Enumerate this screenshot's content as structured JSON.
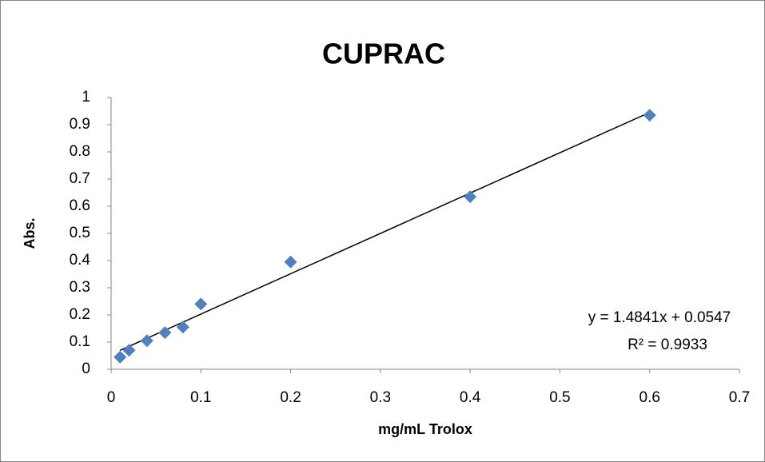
{
  "chart_data": {
    "type": "scatter",
    "title": "CUPRAC",
    "x_label": "mg/mL Trolox",
    "y_label": "Abs.",
    "x": [
      0.01,
      0.02,
      0.04,
      0.06,
      0.08,
      0.1,
      0.2,
      0.4,
      0.6
    ],
    "values": [
      0.045,
      0.07,
      0.105,
      0.135,
      0.155,
      0.24,
      0.395,
      0.635,
      0.935
    ],
    "color": "#4f81bd",
    "xlim": [
      0,
      0.7
    ],
    "xticks": [
      0,
      0.1,
      0.2,
      0.3,
      0.4,
      0.5,
      0.6,
      0.7
    ],
    "ylim": [
      0,
      1
    ],
    "yticks": [
      0,
      0.1,
      0.2,
      0.3,
      0.4,
      0.5,
      0.6,
      0.7,
      0.8,
      0.9,
      1
    ],
    "grid": false,
    "trendline": {
      "slope": 1.4841,
      "intercept": 0.0547,
      "equation": "y = 1.4841x + 0.0547",
      "r2": "R² = 0.9933"
    }
  }
}
